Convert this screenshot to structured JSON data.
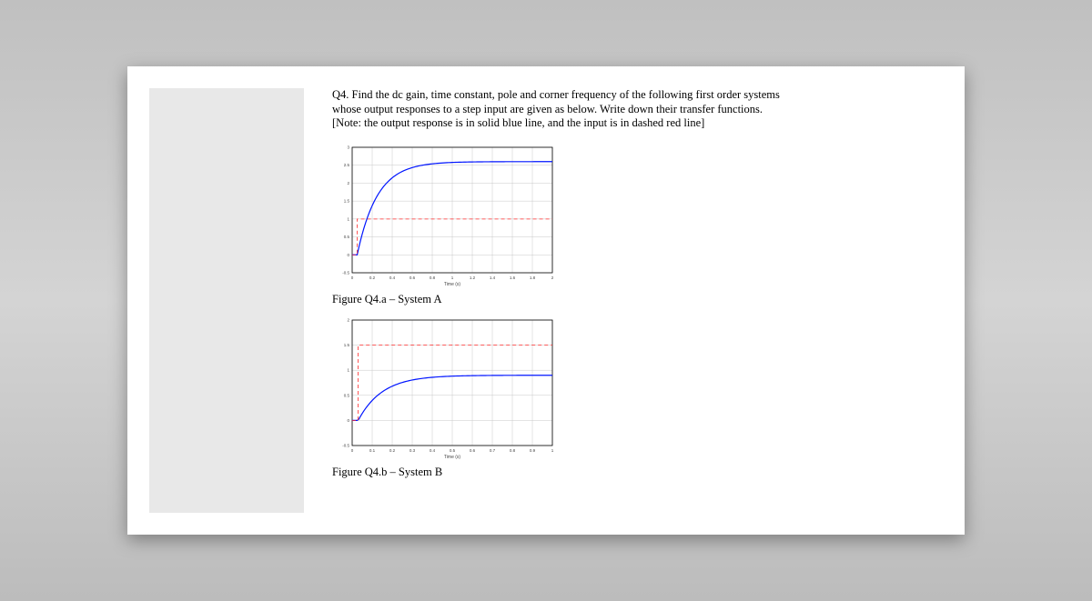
{
  "question": {
    "line1": "Q4. Find the dc gain, time constant, pole and corner frequency of the following first order systems",
    "line2": "whose output responses to a step input are given as below. Write down their transfer functions.",
    "line3": "[Note: the output response is in solid blue line, and the input is in dashed red line]"
  },
  "figA": {
    "caption": "Figure Q4.a – System A",
    "type": "line",
    "xlabel": "Time (s)",
    "xlim": [
      0,
      2
    ],
    "xtick_step": 0.2,
    "ylim": [
      -0.5,
      3
    ],
    "ytick_step": 0.5,
    "background_color": "#ffffff",
    "grid_color": "#c8c8c8",
    "axis_color": "#000000",
    "label_fontsize": 5,
    "tick_fontsize": 4.5,
    "series": [
      {
        "name": "output",
        "color": "#0015ff",
        "width": 1.2,
        "dash": "none",
        "tau": 0.2,
        "gain": 2.6,
        "t0": 0.05,
        "points_hint": "y=2.6*(1-exp(-(t-0.05)/0.2)) for t>=0.05 else 0"
      },
      {
        "name": "input",
        "color": "#ff2a2a",
        "width": 0.8,
        "dash": "4,3",
        "level": 1.0,
        "t0": 0.05
      }
    ]
  },
  "figB": {
    "caption": "Figure Q4.b – System B",
    "type": "line",
    "xlabel": "Time (s)",
    "xlim": [
      0,
      1
    ],
    "xtick_step": 0.1,
    "ylim": [
      -0.5,
      2
    ],
    "ytick_step": 0.5,
    "background_color": "#ffffff",
    "grid_color": "#c8c8c8",
    "axis_color": "#000000",
    "label_fontsize": 5,
    "tick_fontsize": 4.5,
    "series": [
      {
        "name": "output",
        "color": "#0015ff",
        "width": 1.2,
        "dash": "none",
        "tau": 0.12,
        "gain": 0.9,
        "t0": 0.03,
        "points_hint": "y=0.9*(1-exp(-(t-0.03)/0.12)) for t>=0.03 else 0"
      },
      {
        "name": "input",
        "color": "#ff2a2a",
        "width": 0.8,
        "dash": "4,3",
        "level": 1.5,
        "t0": 0.03
      }
    ]
  }
}
